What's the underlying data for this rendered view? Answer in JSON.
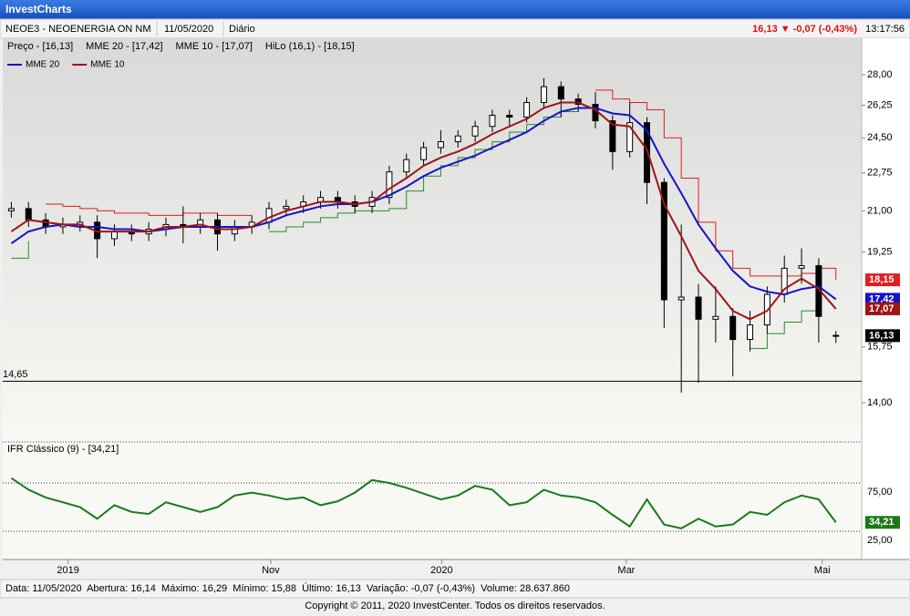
{
  "header": {
    "app_title": "InvestCharts",
    "symbol": "NEOE3 - NEOENERGIA ON NM",
    "date": "11/05/2020",
    "period": "Diário",
    "quote": "16,13 ▼ -0,07 (-0,43%)",
    "time": "13:17:56"
  },
  "chart_data": {
    "type": "candlestick",
    "legend_texts": [
      "Preço - [16,13]",
      "MME 20 - [17,42]",
      "MME 10 - [17,07]",
      "HiLo (16,1) - [18,15]"
    ],
    "x": [
      1,
      3,
      5,
      7,
      9,
      11,
      13,
      15,
      17,
      19,
      21,
      23,
      25,
      27,
      29,
      31,
      33,
      35,
      37,
      39,
      41,
      43,
      45,
      47,
      49,
      51,
      53,
      55,
      57,
      59,
      61,
      63,
      65,
      67,
      69,
      71,
      73,
      75,
      77,
      79,
      81,
      83,
      85,
      87,
      89,
      91,
      93,
      95,
      97
    ],
    "xlim": [
      0,
      100
    ],
    "xticks": [
      {
        "value": 7.6,
        "label": "2019"
      },
      {
        "value": 31.2,
        "label": "Nov"
      },
      {
        "value": 51.1,
        "label": "2020"
      },
      {
        "value": 72.6,
        "label": "Mar"
      },
      {
        "value": 95.4,
        "label": "Mai"
      }
    ],
    "log_scale": true,
    "ylim": [
      12.91,
      30.24
    ],
    "yticks": [
      {
        "value": 14,
        "label": "14,00"
      },
      {
        "value": 15.75,
        "label": "15,75"
      },
      {
        "value": 19.25,
        "label": "19,25"
      },
      {
        "value": 21,
        "label": "21,00"
      },
      {
        "value": 22.75,
        "label": "22,75"
      },
      {
        "value": 24.5,
        "label": "24,50"
      },
      {
        "value": 26.25,
        "label": "26,25"
      },
      {
        "value": 28,
        "label": "28,00"
      }
    ],
    "open": [
      21.0,
      21.1,
      20.6,
      20.3,
      20.4,
      20.5,
      19.8,
      20.1,
      20.0,
      20.2,
      20.4,
      20.3,
      20.6,
      20.0,
      20.3,
      20.5,
      21.1,
      21.2,
      21.4,
      21.6,
      21.4,
      21.2,
      21.6,
      22.8,
      23.4,
      24.0,
      24.3,
      24.6,
      25.1,
      25.7,
      25.6,
      26.4,
      27.3,
      26.6,
      26.3,
      25.4,
      23.8,
      25.3,
      22.3,
      17.4,
      17.5,
      16.7,
      16.8,
      16.0,
      16.5,
      17.6,
      18.6,
      18.7,
      16.14
    ],
    "high": [
      21.4,
      21.4,
      20.9,
      20.7,
      20.8,
      20.8,
      20.4,
      20.4,
      20.5,
      20.7,
      21.2,
      20.9,
      20.9,
      20.6,
      20.8,
      21.4,
      21.5,
      21.7,
      21.9,
      21.9,
      21.7,
      21.9,
      23.1,
      23.7,
      24.3,
      24.9,
      24.9,
      25.4,
      26.0,
      26.0,
      26.7,
      27.8,
      27.6,
      26.9,
      27.0,
      25.7,
      26.4,
      25.6,
      22.5,
      20.4,
      18.0,
      17.9,
      17.1,
      17.0,
      17.9,
      19.1,
      19.4,
      19.0,
      16.29
    ],
    "low": [
      20.7,
      20.3,
      20.0,
      20.0,
      20.1,
      19.0,
      19.5,
      19.7,
      19.7,
      19.9,
      19.6,
      20.0,
      19.3,
      19.7,
      20.0,
      20.2,
      20.8,
      20.9,
      21.1,
      21.1,
      20.9,
      20.9,
      21.3,
      22.5,
      23.1,
      23.7,
      24.0,
      24.3,
      24.8,
      25.1,
      25.3,
      26.1,
      25.6,
      25.9,
      25.0,
      22.9,
      23.5,
      21.3,
      16.4,
      14.3,
      14.6,
      15.9,
      14.8,
      15.6,
      16.2,
      17.3,
      18.0,
      15.9,
      15.88
    ],
    "close": [
      21.1,
      20.6,
      20.3,
      20.4,
      20.5,
      19.8,
      20.1,
      20.0,
      20.2,
      20.4,
      20.3,
      20.6,
      20.0,
      20.3,
      20.5,
      21.1,
      21.2,
      21.4,
      21.6,
      21.4,
      21.2,
      21.6,
      22.8,
      23.4,
      24.0,
      24.3,
      24.6,
      25.1,
      25.7,
      25.6,
      26.4,
      27.3,
      26.6,
      26.3,
      25.4,
      23.8,
      25.3,
      22.3,
      17.4,
      17.5,
      16.7,
      16.8,
      16.0,
      16.5,
      17.6,
      18.6,
      18.7,
      16.8,
      16.13
    ],
    "series": [
      {
        "name": "MME 20",
        "color": "#1414c8",
        "values": [
          19.6,
          20.1,
          20.3,
          20.4,
          20.3,
          20.3,
          20.2,
          20.2,
          20.1,
          20.2,
          20.3,
          20.3,
          20.3,
          20.3,
          20.3,
          20.5,
          20.8,
          21.0,
          21.2,
          21.3,
          21.3,
          21.4,
          21.7,
          22.1,
          22.6,
          23.0,
          23.3,
          23.6,
          24.0,
          24.4,
          24.8,
          25.4,
          25.9,
          26.1,
          26.1,
          25.8,
          25.7,
          24.9,
          23.2,
          21.8,
          20.4,
          19.4,
          18.5,
          17.9,
          17.7,
          17.6,
          17.8,
          17.9,
          17.42
        ]
      },
      {
        "name": "MME 10",
        "color": "#a01414",
        "values": [
          20.1,
          20.6,
          20.5,
          20.4,
          20.4,
          20.1,
          20.1,
          20.1,
          20.1,
          20.3,
          20.3,
          20.4,
          20.2,
          20.2,
          20.3,
          20.7,
          21.0,
          21.2,
          21.4,
          21.4,
          21.3,
          21.4,
          22.0,
          22.5,
          23.1,
          23.5,
          23.8,
          24.2,
          24.7,
          25.1,
          25.5,
          26.1,
          26.4,
          26.4,
          26.0,
          25.2,
          25.1,
          23.9,
          21.3,
          19.9,
          18.5,
          17.8,
          17.0,
          16.7,
          17.0,
          17.8,
          18.2,
          17.8,
          17.07
        ]
      }
    ],
    "hilo": {
      "up_color": "#2a8a2a",
      "down_color": "#e01e1e",
      "up": [
        19.0,
        19.7,
        null,
        null,
        null,
        null,
        null,
        null,
        null,
        null,
        null,
        null,
        null,
        null,
        null,
        20.1,
        20.3,
        20.5,
        20.7,
        20.9,
        21.0,
        21.0,
        21.1,
        21.9,
        22.6,
        23.1,
        23.5,
        23.9,
        24.3,
        24.8,
        25.2,
        25.6,
        25.9,
        26.0,
        null,
        null,
        null,
        null,
        null,
        null,
        null,
        null,
        null,
        15.7,
        16.2,
        16.6,
        17.0,
        17.5,
        null
      ],
      "down": [
        null,
        null,
        21.3,
        21.2,
        21.1,
        21.0,
        20.9,
        20.9,
        20.8,
        20.8,
        20.9,
        20.9,
        20.8,
        20.8,
        20.8,
        null,
        null,
        null,
        null,
        null,
        null,
        null,
        null,
        null,
        null,
        null,
        null,
        null,
        null,
        null,
        null,
        null,
        null,
        null,
        27.1,
        26.6,
        26.4,
        26.0,
        24.5,
        22.5,
        20.5,
        19.3,
        18.6,
        18.3,
        18.3,
        18.3,
        18.4,
        18.6,
        18.15
      ]
    },
    "support": {
      "value": 14.65,
      "label": "14,65"
    },
    "last_labels": [
      {
        "value": 18.15,
        "label": "18,15",
        "color": "#e01e1e"
      },
      {
        "value": 17.42,
        "label": "17,42",
        "color": "#1414c8"
      },
      {
        "value": 17.07,
        "label": "17,07",
        "color": "#a01414"
      },
      {
        "value": 16.13,
        "label": "16,13",
        "color": "#000000"
      }
    ],
    "rsi": {
      "title": "IFR Clássico (9) - [34,21]",
      "color": "#1a7a1a",
      "values": [
        80,
        68,
        60,
        55,
        50,
        38,
        52,
        45,
        43,
        55,
        50,
        45,
        50,
        62,
        65,
        62,
        58,
        60,
        52,
        56,
        65,
        78,
        75,
        70,
        64,
        58,
        62,
        72,
        68,
        52,
        55,
        68,
        62,
        60,
        55,
        42,
        30,
        58,
        32,
        28,
        38,
        30,
        32,
        45,
        42,
        55,
        62,
        58,
        34.21
      ],
      "ylim": [
        -4.2,
        116.5
      ],
      "yticks": [
        {
          "value": 25,
          "label": "25,00"
        },
        {
          "value": 75,
          "label": "75,00"
        }
      ],
      "last": {
        "value": 34.21,
        "label": "34,21"
      }
    }
  },
  "footer": {
    "summary": "Data: 11/05/2020  Abertura: 16,14  Máximo: 16,29  Mínimo: 15,88  Último: 16,13  Variação: -0,07 (-0,43%)  Volume: 28.637.860",
    "copyright": "Copyright © 2011, 2020  InvestCenter. Todos os direitos reservados."
  }
}
